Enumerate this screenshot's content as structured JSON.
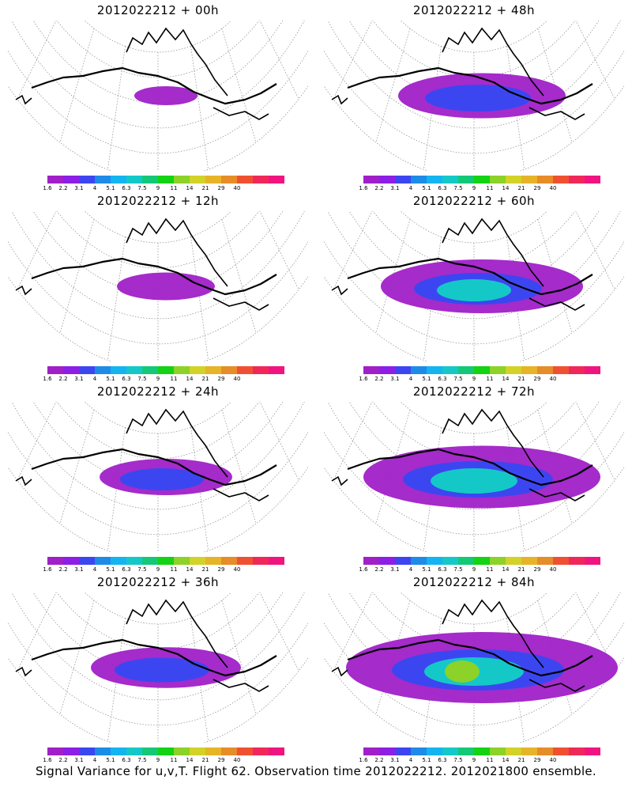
{
  "panels": [
    {
      "title": "2012022212 + 00h",
      "level": 0
    },
    {
      "title": "2012022212 + 48h",
      "level": 3
    },
    {
      "title": "2012022212 + 12h",
      "level": 1
    },
    {
      "title": "2012022212 + 60h",
      "level": 4
    },
    {
      "title": "2012022212 + 24h",
      "level": 2
    },
    {
      "title": "2012022212 + 72h",
      "level": 5
    },
    {
      "title": "2012022212 + 36h",
      "level": 2.5
    },
    {
      "title": "2012022212 + 84h",
      "level": 6
    }
  ],
  "colorbar": {
    "colors": [
      "#a020c8",
      "#8c1ee6",
      "#3c46f0",
      "#1e8ce6",
      "#14b4f0",
      "#14c8c8",
      "#14c878",
      "#14d214",
      "#8cd228",
      "#d2d228",
      "#e6b428",
      "#e68c28",
      "#f05032",
      "#f0285a",
      "#f01480"
    ],
    "labels": [
      "1.6",
      "2.2",
      "3.1",
      "4",
      "5.1",
      "6.3",
      "7.5",
      "9",
      "11",
      "14",
      "21",
      "29",
      "40"
    ]
  },
  "caption": "Signal Variance for u,v,T. Flight 62. Observation time 2012022212. 2012021800 ensemble.",
  "colors": {
    "grid": "#888888",
    "coast": "#000000",
    "background": "#ffffff"
  }
}
